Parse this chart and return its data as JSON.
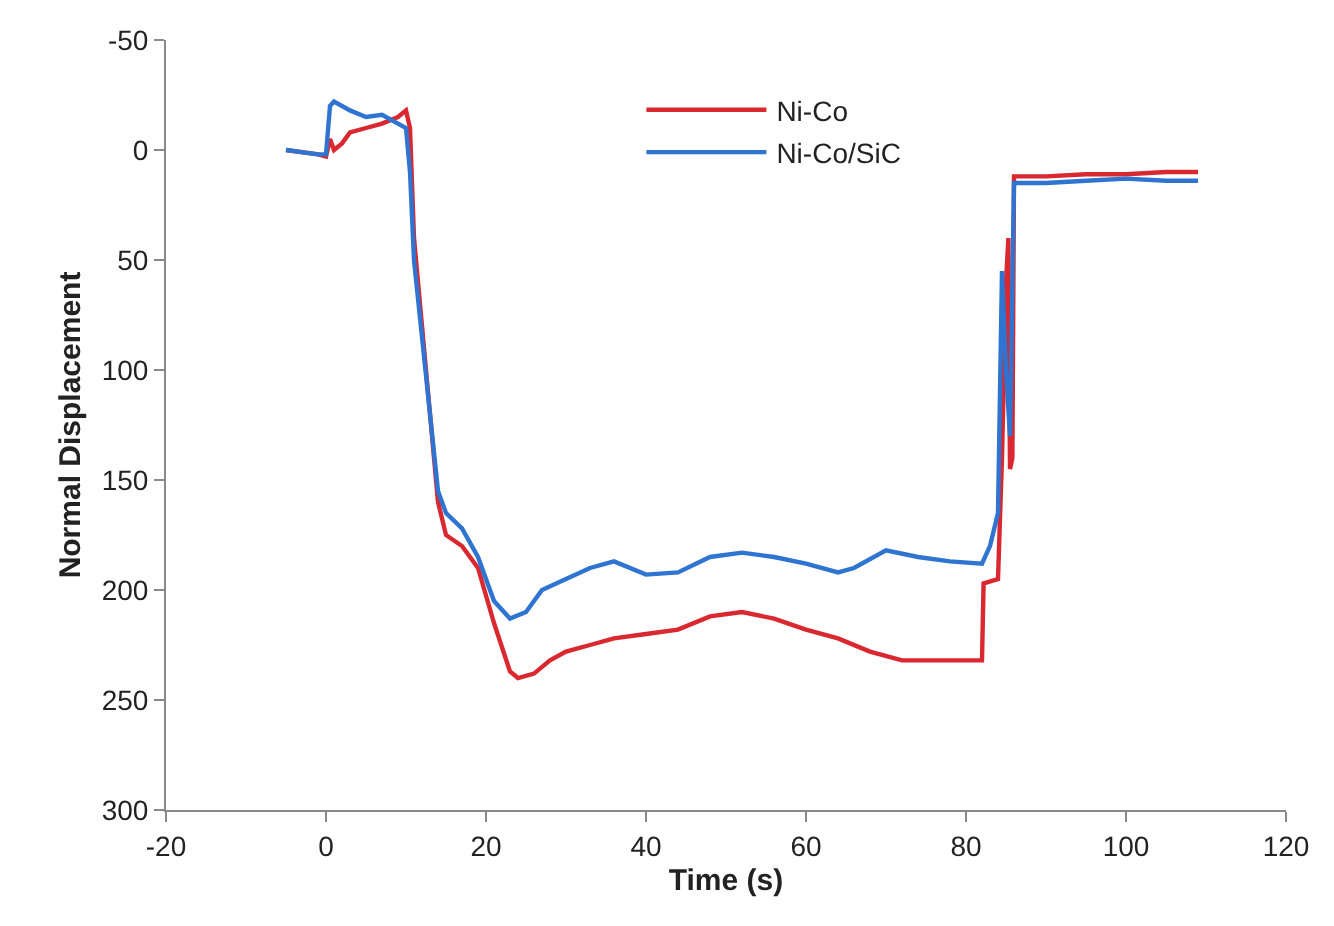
{
  "chart_data": {
    "type": "line",
    "xlabel": "Time (s)",
    "ylabel": "Normal Displacement",
    "xlim": [
      -20,
      120
    ],
    "xticks": [
      -20,
      0,
      20,
      40,
      60,
      80,
      100,
      120
    ],
    "ylim": [
      300,
      -50
    ],
    "yticks": [
      -50,
      0,
      50,
      100,
      150,
      200,
      250,
      300
    ],
    "legend": "top",
    "marker": "none",
    "line_style": "solid",
    "series": [
      {
        "name": "Ni-Co",
        "color": "#d9282f",
        "x": [
          -5,
          -1,
          0,
          0.5,
          1,
          2,
          3,
          5,
          7,
          9,
          10,
          10.5,
          11,
          12,
          13,
          14,
          15,
          17,
          19,
          21,
          23,
          24,
          26,
          28,
          30,
          33,
          36,
          40,
          44,
          48,
          52,
          56,
          60,
          64,
          68,
          72,
          76,
          80,
          82,
          82.2,
          84,
          84.5,
          85,
          85.3,
          85.5,
          85.8,
          86,
          90,
          95,
          100,
          105,
          109
        ],
        "values": [
          0,
          2,
          3,
          -5,
          0,
          -3,
          -8,
          -10,
          -12,
          -15,
          -18,
          -10,
          40,
          80,
          120,
          160,
          175,
          180,
          190,
          215,
          237,
          240,
          238,
          232,
          228,
          225,
          222,
          220,
          218,
          212,
          210,
          213,
          218,
          222,
          228,
          232,
          232,
          232,
          232,
          197,
          195,
          140,
          60,
          40,
          145,
          140,
          12,
          12,
          11,
          11,
          10,
          10
        ]
      },
      {
        "name": "Ni-Co/SiC",
        "color": "#2f74d0",
        "x": [
          -5,
          -1,
          0,
          0.5,
          1,
          2,
          3,
          5,
          7,
          9,
          10,
          10.5,
          11,
          12,
          13,
          14,
          15,
          17,
          19,
          21,
          23,
          25,
          27,
          30,
          33,
          36,
          40,
          44,
          48,
          52,
          56,
          60,
          64,
          66,
          70,
          74,
          78,
          82,
          83,
          84,
          84.5,
          85,
          85.5,
          86,
          90,
          95,
          100,
          105,
          109
        ],
        "values": [
          0,
          2,
          2,
          -20,
          -22,
          -20,
          -18,
          -15,
          -16,
          -12,
          -10,
          10,
          50,
          85,
          120,
          155,
          165,
          172,
          185,
          205,
          213,
          210,
          200,
          195,
          190,
          187,
          193,
          192,
          185,
          183,
          185,
          188,
          192,
          190,
          182,
          185,
          187,
          188,
          180,
          165,
          55,
          100,
          130,
          15,
          15,
          14,
          13,
          14,
          14
        ]
      }
    ]
  }
}
